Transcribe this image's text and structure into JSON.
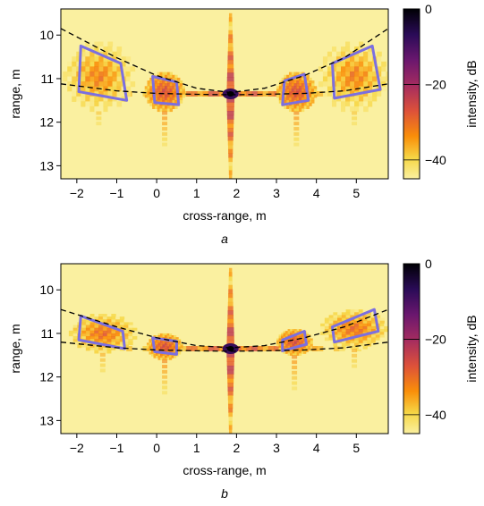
{
  "chart_data": [
    {
      "type": "heatmap",
      "panel_label": "a",
      "xlabel": "cross-range, m",
      "ylabel": "range, m",
      "xlim": [
        -2.4,
        5.8
      ],
      "ylim": [
        13.3,
        9.4
      ],
      "x_ticks": [
        -2,
        -1,
        0,
        1,
        2,
        3,
        4,
        5
      ],
      "x_tick_labels": [
        "−2",
        "−1",
        "0",
        "1",
        "2",
        "3",
        "4",
        "5"
      ],
      "y_ticks": [
        10,
        11,
        12,
        13
      ],
      "y_tick_labels": [
        "10",
        "11",
        "12",
        "13"
      ],
      "colorbar": {
        "label": "intensity, dB",
        "range": [
          -45,
          0
        ],
        "ticks": [
          0,
          -20,
          -40
        ],
        "tick_labels": [
          "0",
          "−20",
          "−40"
        ],
        "colormap": "inferno-reversed"
      },
      "focus": {
        "x": 1.85,
        "y": 11.35
      },
      "boundary_arcs": [
        {
          "style": "dashed",
          "x": [
            -2.4,
            -1.0,
            0.0,
            1.0,
            1.85,
            2.7,
            3.7,
            4.7,
            5.8
          ],
          "y": [
            9.85,
            10.52,
            10.93,
            11.22,
            11.32,
            11.22,
            10.93,
            10.52,
            9.85
          ]
        },
        {
          "style": "dashed",
          "x": [
            -2.4,
            -1.0,
            0.0,
            1.0,
            1.85,
            2.7,
            3.7,
            4.7,
            5.8
          ],
          "y": [
            11.12,
            11.28,
            11.34,
            11.36,
            11.37,
            11.36,
            11.34,
            11.28,
            11.12
          ]
        }
      ],
      "regions": [
        {
          "x": [
            -1.9,
            -0.9,
            -0.75,
            -1.95
          ],
          "y": [
            10.25,
            10.65,
            11.5,
            11.3
          ]
        },
        {
          "x": [
            -0.1,
            0.5,
            0.55,
            -0.05
          ],
          "y": [
            10.95,
            11.08,
            11.6,
            11.55
          ]
        },
        {
          "x": [
            3.2,
            3.7,
            3.8,
            3.15
          ],
          "y": [
            11.05,
            10.9,
            11.5,
            11.6
          ]
        },
        {
          "x": [
            4.4,
            5.4,
            5.6,
            4.45
          ],
          "y": [
            10.65,
            10.25,
            11.25,
            11.45
          ]
        }
      ],
      "sources": [
        {
          "x": -1.45,
          "y": 10.95,
          "level": -28,
          "spread_x": 0.9,
          "spread_y": 0.8
        },
        {
          "x": 0.2,
          "y": 11.3,
          "level": -22,
          "spread_x": 0.5,
          "spread_y": 0.45
        },
        {
          "x": 3.5,
          "y": 11.3,
          "level": -22,
          "spread_x": 0.5,
          "spread_y": 0.45
        },
        {
          "x": 4.95,
          "y": 10.95,
          "level": -28,
          "spread_x": 0.9,
          "spread_y": 0.8
        }
      ]
    },
    {
      "type": "heatmap",
      "panel_label": "b",
      "xlabel": "cross-range, m",
      "ylabel": "range, m",
      "xlim": [
        -2.4,
        5.8
      ],
      "ylim": [
        13.3,
        9.4
      ],
      "x_ticks": [
        -2,
        -1,
        0,
        1,
        2,
        3,
        4,
        5
      ],
      "x_tick_labels": [
        "−2",
        "−1",
        "0",
        "1",
        "2",
        "3",
        "4",
        "5"
      ],
      "y_ticks": [
        10,
        11,
        12,
        13
      ],
      "y_tick_labels": [
        "10",
        "11",
        "12",
        "13"
      ],
      "colorbar": {
        "label": "intensity, dB",
        "range": [
          -45,
          0
        ],
        "ticks": [
          0,
          -20,
          -40
        ],
        "tick_labels": [
          "0",
          "−20",
          "−40"
        ],
        "colormap": "inferno-reversed"
      },
      "focus": {
        "x": 1.85,
        "y": 11.35
      },
      "boundary_arcs": [
        {
          "style": "dashed",
          "x": [
            -2.4,
            -1.0,
            0.0,
            1.0,
            1.85,
            2.7,
            3.7,
            4.7,
            5.8
          ],
          "y": [
            10.45,
            10.85,
            11.1,
            11.28,
            11.33,
            11.28,
            11.1,
            10.85,
            10.45
          ]
        },
        {
          "style": "dashed",
          "x": [
            -2.4,
            -1.0,
            0.0,
            1.0,
            1.85,
            2.7,
            3.7,
            4.7,
            5.8
          ],
          "y": [
            11.2,
            11.33,
            11.38,
            11.4,
            11.41,
            11.4,
            11.38,
            11.33,
            11.2
          ]
        }
      ],
      "regions": [
        {
          "x": [
            -1.9,
            -0.85,
            -0.8,
            -1.95
          ],
          "y": [
            10.6,
            10.95,
            11.35,
            11.15
          ]
        },
        {
          "x": [
            -0.1,
            0.5,
            0.5,
            -0.05
          ],
          "y": [
            11.1,
            11.18,
            11.48,
            11.42
          ]
        },
        {
          "x": [
            3.15,
            3.7,
            3.75,
            3.15
          ],
          "y": [
            11.15,
            10.95,
            11.25,
            11.4
          ]
        },
        {
          "x": [
            4.4,
            5.45,
            5.55,
            4.45
          ],
          "y": [
            10.85,
            10.45,
            10.95,
            11.2
          ]
        }
      ],
      "sources": [
        {
          "x": -1.35,
          "y": 11.0,
          "level": -26,
          "spread_x": 0.85,
          "spread_y": 0.45
        },
        {
          "x": 0.2,
          "y": 11.3,
          "level": -22,
          "spread_x": 0.45,
          "spread_y": 0.3
        },
        {
          "x": 3.45,
          "y": 11.2,
          "level": -22,
          "spread_x": 0.45,
          "spread_y": 0.3
        },
        {
          "x": 4.95,
          "y": 10.9,
          "level": -26,
          "spread_x": 0.85,
          "spread_y": 0.45
        }
      ]
    }
  ],
  "colors": {
    "background": "#faf0a0",
    "region_outline": "#7b6fe0",
    "arc": "#000000"
  }
}
